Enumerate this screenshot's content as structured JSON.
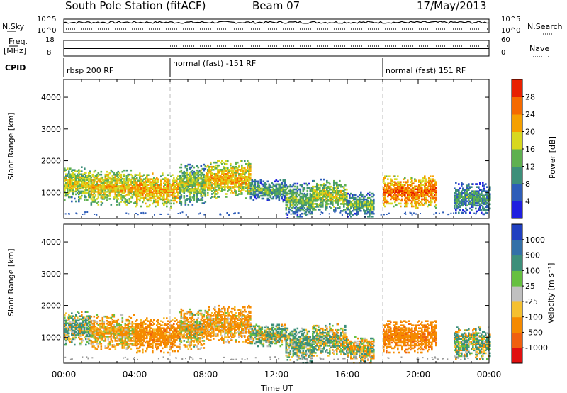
{
  "header": {
    "station": "South Pole Station (fitACF)",
    "beam": "Beam 07",
    "date": "17/May/2013"
  },
  "top_panels": {
    "nsky_label": "N.Sky",
    "nsky_ticks": [
      "10^5",
      "10^0"
    ],
    "nsearch_label": "N.Search",
    "nsearch_ticks": [
      "10^5",
      "10^0"
    ],
    "freq_label": "Freq.",
    "freq_unit": "[MHz]",
    "freq_ticks": [
      "18",
      "8"
    ],
    "nave_label": "Nave",
    "nave_ticks": [
      "60",
      "0"
    ],
    "cpid_label": "CPID",
    "cpid_segments": [
      {
        "label": "rbsp 200 RF",
        "start_h": 0,
        "end_h": 6
      },
      {
        "label": "normal (fast) -151 RF",
        "start_h": 6,
        "end_h": 18
      },
      {
        "label": "normal (fast) 151 RF",
        "start_h": 18,
        "end_h": 24
      }
    ]
  },
  "chart_data": [
    {
      "type": "heatmap",
      "parameter": "Power",
      "ylabel": "Slant Range [km]",
      "yticks": [
        1000,
        2000,
        3000,
        4000
      ],
      "ylim": [
        180,
        4560
      ],
      "xlim_hours": [
        0,
        24
      ],
      "colorbar_label": "Power [dB]",
      "colorbar_ticks": [
        "4",
        "8",
        "12",
        "16",
        "20",
        "24",
        "28"
      ],
      "colorbar_colors": [
        "#1f1fe0",
        "#2e5db8",
        "#3d8f7a",
        "#5fb050",
        "#d8d820",
        "#f5a000",
        "#f56a00",
        "#e82000"
      ],
      "echo_regions": [
        {
          "start_h": 0.0,
          "end_h": 1.5,
          "range_min": 700,
          "range_max": 1800,
          "mean": 16
        },
        {
          "start_h": 1.5,
          "end_h": 4.0,
          "range_min": 600,
          "range_max": 1700,
          "mean": 18
        },
        {
          "start_h": 4.0,
          "end_h": 6.5,
          "range_min": 500,
          "range_max": 1600,
          "mean": 20
        },
        {
          "start_h": 6.5,
          "end_h": 8.0,
          "range_min": 600,
          "range_max": 1900,
          "mean": 14
        },
        {
          "start_h": 8.0,
          "end_h": 10.5,
          "range_min": 800,
          "range_max": 2000,
          "mean": 19
        },
        {
          "start_h": 10.5,
          "end_h": 12.5,
          "range_min": 700,
          "range_max": 1400,
          "mean": 10
        },
        {
          "start_h": 12.5,
          "end_h": 14.0,
          "range_min": 180,
          "range_max": 1300,
          "mean": 12
        },
        {
          "start_h": 14.0,
          "end_h": 16.0,
          "range_min": 400,
          "range_max": 1400,
          "mean": 15
        },
        {
          "start_h": 16.0,
          "end_h": 17.5,
          "range_min": 180,
          "range_max": 1000,
          "mean": 11
        },
        {
          "start_h": 18.0,
          "end_h": 21.0,
          "range_min": 500,
          "range_max": 1500,
          "mean": 23
        },
        {
          "start_h": 22.0,
          "end_h": 24.0,
          "range_min": 300,
          "range_max": 1300,
          "mean": 9
        }
      ]
    },
    {
      "type": "heatmap",
      "parameter": "Velocity",
      "ylabel": "Slant Range [km]",
      "yticks": [
        1000,
        2000,
        3000,
        4000
      ],
      "ylim": [
        180,
        4560
      ],
      "xlim_hours": [
        0,
        24
      ],
      "colorbar_label": "Velocity [m s⁻¹]",
      "colorbar_ticks": [
        "1000",
        "500",
        "100",
        "25",
        "-25",
        "-100",
        "-500",
        "-1000"
      ],
      "colorbar_colors": [
        "#2040c0",
        "#3370a8",
        "#3d8f7a",
        "#66c040",
        "#c0c0c0",
        "#f5c030",
        "#f58a00",
        "#f06010",
        "#e01010"
      ],
      "echo_regions": [
        {
          "start_h": 0.0,
          "end_h": 1.5,
          "range_min": 700,
          "range_max": 1800,
          "mean": 80
        },
        {
          "start_h": 1.5,
          "end_h": 4.0,
          "range_min": 600,
          "range_max": 1700,
          "mean": -150
        },
        {
          "start_h": 4.0,
          "end_h": 6.5,
          "range_min": 500,
          "range_max": 1600,
          "mean": -300
        },
        {
          "start_h": 6.5,
          "end_h": 8.0,
          "range_min": 600,
          "range_max": 1900,
          "mean": -120
        },
        {
          "start_h": 8.0,
          "end_h": 10.5,
          "range_min": 800,
          "range_max": 2000,
          "mean": -200
        },
        {
          "start_h": 10.5,
          "end_h": 12.5,
          "range_min": 700,
          "range_max": 1400,
          "mean": 60
        },
        {
          "start_h": 12.5,
          "end_h": 14.0,
          "range_min": 180,
          "range_max": 1300,
          "mean": 120
        },
        {
          "start_h": 14.0,
          "end_h": 16.0,
          "range_min": 400,
          "range_max": 1400,
          "mean": 30
        },
        {
          "start_h": 16.0,
          "end_h": 17.5,
          "range_min": 180,
          "range_max": 1000,
          "mean": -60
        },
        {
          "start_h": 18.0,
          "end_h": 21.0,
          "range_min": 500,
          "range_max": 1500,
          "mean": -350
        },
        {
          "start_h": 22.0,
          "end_h": 24.0,
          "range_min": 300,
          "range_max": 1300,
          "mean": 90
        }
      ]
    }
  ],
  "x_axis": {
    "ticks": [
      "00:00",
      "04:00",
      "08:00",
      "12:00",
      "16:00",
      "20:00",
      "00:00"
    ],
    "label": "Time UT"
  }
}
